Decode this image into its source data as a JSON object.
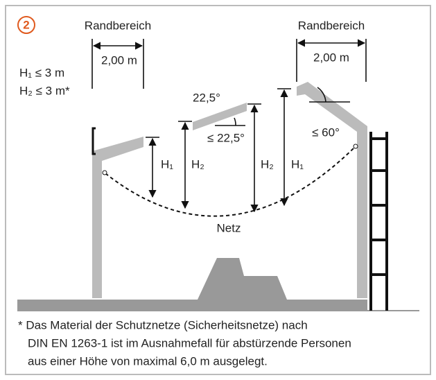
{
  "badge": "2",
  "margin_left": {
    "label": "Randbereich",
    "width": "2,00 m"
  },
  "margin_right": {
    "label": "Randbereich",
    "width": "2,00 m"
  },
  "limits": [
    "H₁ ≤ 3 m",
    "H₂ ≤ 3 m*"
  ],
  "angles": {
    "plank": "22,5°",
    "plank_max": "≤ 22,5°",
    "roof_max": "≤ 60°"
  },
  "heights": [
    "H₁",
    "H₂",
    "H₂",
    "H₁"
  ],
  "net": "Netz",
  "footnote": [
    "* Das Material der Schutznetze (Sicherheitsnetze) nach",
    "DIN EN 1263-1 ist im Ausnahmefall für abstürzende Personen",
    "aus einer Höhe von maximal 6,0 m ausgelegt."
  ]
}
